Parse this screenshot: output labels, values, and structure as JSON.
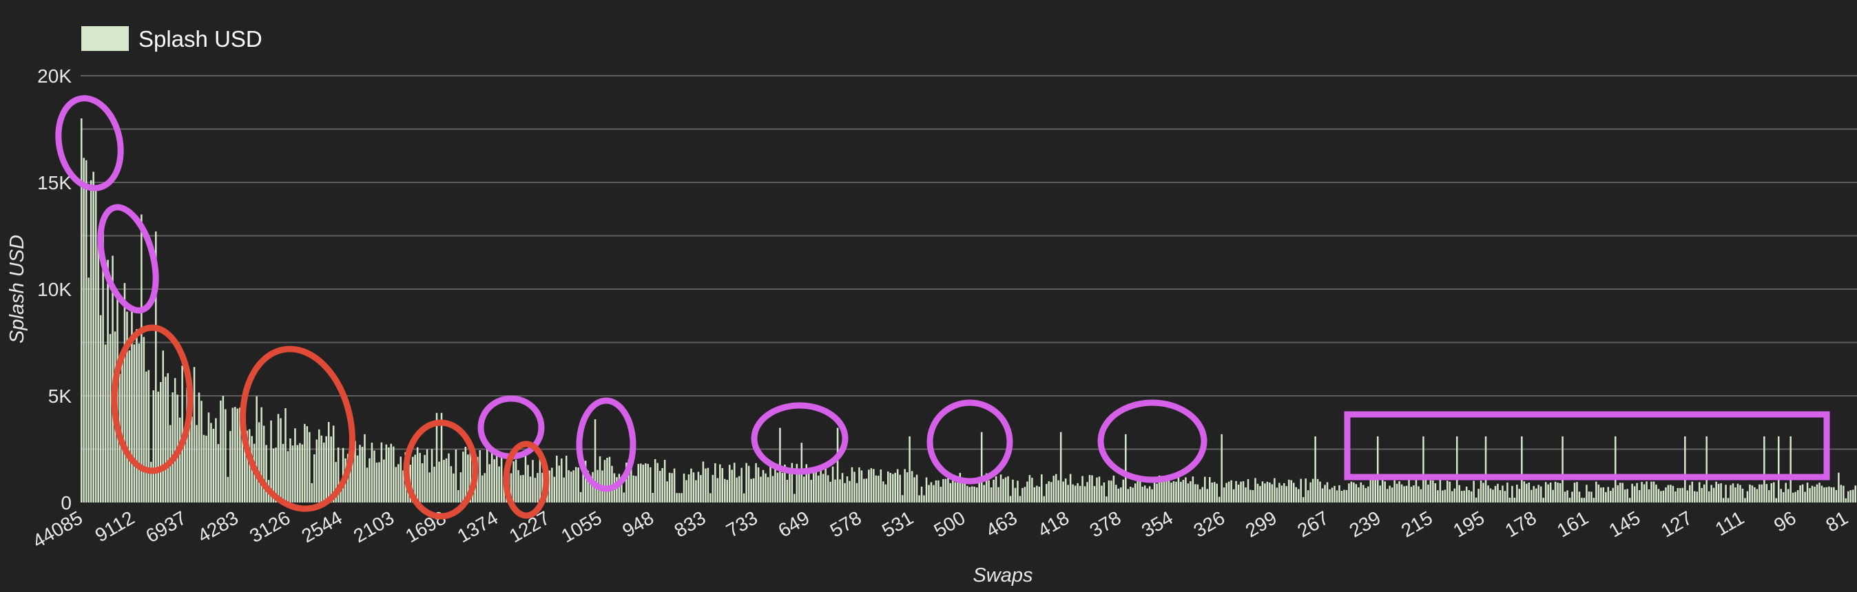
{
  "chart_data": {
    "type": "bar",
    "title": "",
    "xlabel": "Swaps",
    "ylabel": "Splash USD",
    "ylim": [
      0,
      20000
    ],
    "yticks": [
      0,
      5000,
      10000,
      15000,
      20000
    ],
    "ytick_labels": [
      "0",
      "5K",
      "10K",
      "15K",
      "20K"
    ],
    "grid": true,
    "legend": "top-left",
    "x_tick_labels": [
      "44085",
      "9112",
      "6937",
      "4283",
      "3126",
      "2544",
      "2103",
      "1698",
      "1374",
      "1227",
      "1055",
      "948",
      "833",
      "733",
      "649",
      "578",
      "531",
      "500",
      "463",
      "418",
      "378",
      "354",
      "326",
      "299",
      "267",
      "239",
      "215",
      "195",
      "178",
      "161",
      "145",
      "127",
      "111",
      "96",
      "81"
    ],
    "series": [
      {
        "name": "Splash USD",
        "color": "#d6e8cc",
        "envelope": [
          [
            0,
            18000
          ],
          [
            4,
            15500
          ],
          [
            8,
            13000
          ],
          [
            15,
            9500
          ],
          [
            22,
            8500
          ],
          [
            30,
            7500
          ],
          [
            40,
            6000
          ],
          [
            55,
            5000
          ],
          [
            70,
            4500
          ],
          [
            85,
            4000
          ],
          [
            100,
            3500
          ],
          [
            115,
            3000
          ],
          [
            130,
            2600
          ],
          [
            150,
            2400
          ],
          [
            170,
            2200
          ],
          [
            200,
            2000
          ],
          [
            240,
            1800
          ],
          [
            280,
            1700
          ],
          [
            320,
            1500
          ],
          [
            360,
            1300
          ],
          [
            400,
            1200
          ],
          [
            450,
            1100
          ],
          [
            520,
            1000
          ],
          [
            600,
            900
          ],
          [
            680,
            850
          ],
          [
            738,
            800
          ]
        ],
        "spikes": [
          [
            0,
            18000
          ],
          [
            5,
            15500
          ],
          [
            25,
            13500
          ],
          [
            31,
            12700
          ],
          [
            95,
            3300
          ],
          [
            148,
            4200
          ],
          [
            150,
            4200
          ],
          [
            214,
            3900
          ],
          [
            291,
            3500
          ],
          [
            300,
            2800
          ],
          [
            315,
            3500
          ],
          [
            345,
            3100
          ],
          [
            375,
            3300
          ],
          [
            408,
            3300
          ],
          [
            435,
            3200
          ],
          [
            475,
            3200
          ],
          [
            514,
            3100
          ],
          [
            540,
            3100
          ],
          [
            559,
            3100
          ],
          [
            573,
            3100
          ],
          [
            585,
            3100
          ],
          [
            600,
            3100
          ],
          [
            617,
            3100
          ],
          [
            639,
            3100
          ],
          [
            668,
            3100
          ],
          [
            677,
            3100
          ],
          [
            701,
            3100
          ],
          [
            707,
            3100
          ],
          [
            712,
            3100
          ],
          [
            732,
            1400
          ]
        ]
      }
    ],
    "annotations": [
      {
        "shape": "ellipse",
        "color": "#d561e8",
        "x": 0.5,
        "y": 16500
      },
      {
        "shape": "ellipse",
        "color": "#d561e8",
        "x": 25,
        "y": 11500
      },
      {
        "shape": "ellipse",
        "color": "#e04b38",
        "x": 39,
        "y": 4800
      },
      {
        "shape": "ellipse",
        "color": "#e04b38",
        "x": 114,
        "y": 3300
      },
      {
        "shape": "ellipse",
        "color": "#e04b38",
        "x": 195,
        "y": 1800
      },
      {
        "shape": "ellipse",
        "color": "#d561e8",
        "x": 248,
        "y": 3500
      },
      {
        "shape": "ellipse",
        "color": "#e04b38",
        "x": 256,
        "y": 1100
      },
      {
        "shape": "ellipse",
        "color": "#d561e8",
        "x": 307,
        "y": 2700
      },
      {
        "shape": "ellipse",
        "color": "#d561e8",
        "x": 383,
        "y": 3000
      },
      {
        "shape": "ellipse",
        "color": "#d561e8",
        "x": 448,
        "y": 2800
      },
      {
        "shape": "ellipse",
        "color": "#d561e8",
        "x": 489,
        "y": 2800
      },
      {
        "shape": "rect",
        "color": "#d561e8",
        "x": 535,
        "y": 2900
      }
    ]
  }
}
